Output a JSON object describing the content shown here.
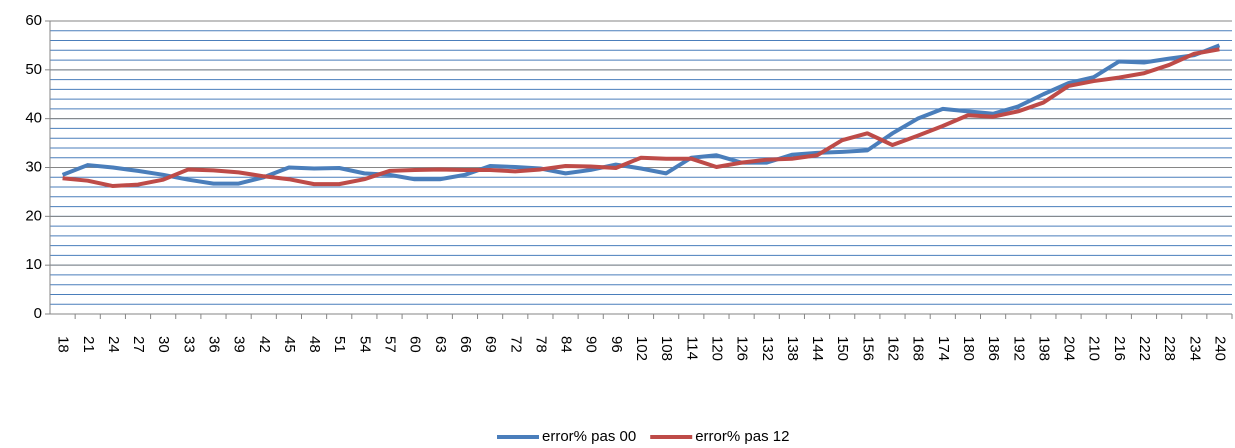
{
  "chart_data": {
    "type": "line",
    "categories": [
      "18",
      "21",
      "24",
      "27",
      "30",
      "33",
      "36",
      "39",
      "42",
      "45",
      "48",
      "51",
      "54",
      "57",
      "60",
      "63",
      "66",
      "69",
      "72",
      "78",
      "84",
      "90",
      "96",
      "102",
      "108",
      "114",
      "120",
      "126",
      "132",
      "138",
      "144",
      "150",
      "156",
      "162",
      "168",
      "174",
      "180",
      "186",
      "192",
      "198",
      "204",
      "210",
      "216",
      "222",
      "228",
      "234",
      "240"
    ],
    "series": [
      {
        "name": "error% pas 00",
        "color": "#4a7ebb",
        "values": [
          28.5,
          30.5,
          30,
          29.3,
          28.5,
          27.5,
          26.7,
          26.7,
          28,
          30,
          29.8,
          29.9,
          28.8,
          28.5,
          27.6,
          27.6,
          28.5,
          30.3,
          30.1,
          29.8,
          28.8,
          29.5,
          30.6,
          29.8,
          28.8,
          32,
          32.5,
          31,
          31,
          32.6,
          33,
          33.2,
          33.5,
          37,
          40,
          42,
          41.5,
          41,
          42.5,
          45,
          47.3,
          48.5,
          51.7,
          51.5,
          52.3,
          53,
          55
        ]
      },
      {
        "name": "error% pas 12",
        "color": "#be4b48",
        "values": [
          27.8,
          27.3,
          26.2,
          26.5,
          27.5,
          29.6,
          29.4,
          29,
          28.2,
          27.6,
          26.6,
          26.6,
          27.6,
          29.3,
          29.5,
          29.6,
          29.5,
          29.5,
          29.2,
          29.6,
          30.3,
          30.2,
          29.9,
          32,
          31.8,
          31.8,
          30.1,
          31,
          31.6,
          31.8,
          32.5,
          35.6,
          37,
          34.6,
          36.5,
          38.5,
          40.7,
          40.4,
          41.5,
          43.3,
          46.7,
          47.7,
          48.4,
          49.3,
          51,
          53.3,
          54.2
        ]
      }
    ],
    "ylim": [
      0,
      60
    ],
    "yticks": [
      0,
      10,
      20,
      30,
      40,
      50,
      60
    ],
    "grid": true,
    "minor_grid_step": 2,
    "legend": "bottom"
  }
}
